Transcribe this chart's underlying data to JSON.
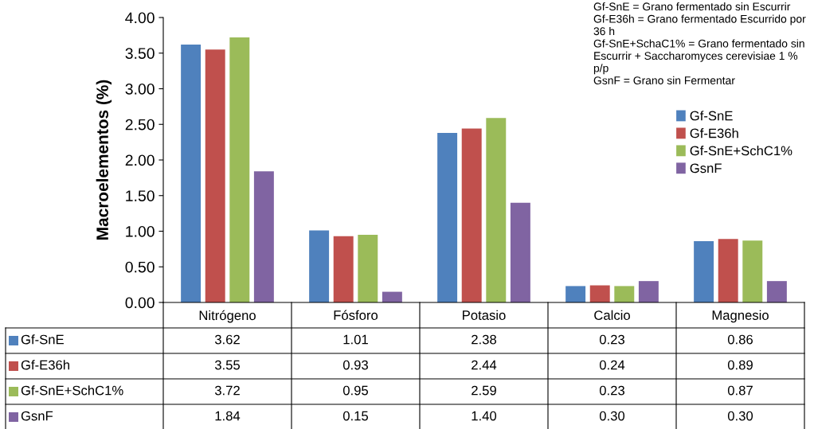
{
  "chart_data": {
    "type": "bar",
    "ylabel": "Macroelementos (%)",
    "categories": [
      "Nitrógeno",
      "Fósforo",
      "Potasio",
      "Calcio",
      "Magnesio"
    ],
    "series": [
      {
        "name": "Gf-SnE",
        "color": "#4f81bd",
        "values": [
          3.62,
          1.01,
          2.38,
          0.23,
          0.86
        ],
        "value_labels": [
          "3.62",
          "1.01",
          "2.38",
          "0.23",
          "0.86"
        ]
      },
      {
        "name": "Gf-E36h",
        "color": "#c0504d",
        "values": [
          3.55,
          0.93,
          2.44,
          0.24,
          0.89
        ],
        "value_labels": [
          "3.55",
          "0.93",
          "2.44",
          "0.24",
          "0.89"
        ]
      },
      {
        "name": "Gf-SnE+SchC1%",
        "color": "#9bbb59",
        "values": [
          3.72,
          0.95,
          2.59,
          0.23,
          0.87
        ],
        "value_labels": [
          "3.72",
          "0.95",
          "2.59",
          "0.23",
          "0.87"
        ]
      },
      {
        "name": "GsnF",
        "color": "#8064a2",
        "values": [
          1.84,
          0.15,
          1.4,
          0.3,
          0.3
        ],
        "value_labels": [
          "1.84",
          "0.15",
          "1.40",
          "0.30",
          "0.30"
        ]
      }
    ],
    "ylim": [
      0,
      4
    ],
    "yticks": [
      {
        "value": 0,
        "label": "0.00"
      },
      {
        "value": 0.5,
        "label": "0.50"
      },
      {
        "value": 1,
        "label": "1.00"
      },
      {
        "value": 1.5,
        "label": "1.50"
      },
      {
        "value": 2,
        "label": "2.00"
      },
      {
        "value": 2.5,
        "label": "2.50"
      },
      {
        "value": 3,
        "label": "3.00"
      },
      {
        "value": 3.5,
        "label": "3.50"
      },
      {
        "value": 4,
        "label": "4.00"
      }
    ],
    "grid": false,
    "legend": "right",
    "annotations": [
      "Gf-SnE = Grano fermentado sin Escurrir",
      "Gf-E36h = Grano fermentado Escurrido por 36 h",
      "Gf-SnE+SchaC1% = Grano fermentado sin Escurrir + Saccharomyces cerevisiae 1 % p/p",
      "GsnF = Grano sin Fermentar"
    ]
  }
}
